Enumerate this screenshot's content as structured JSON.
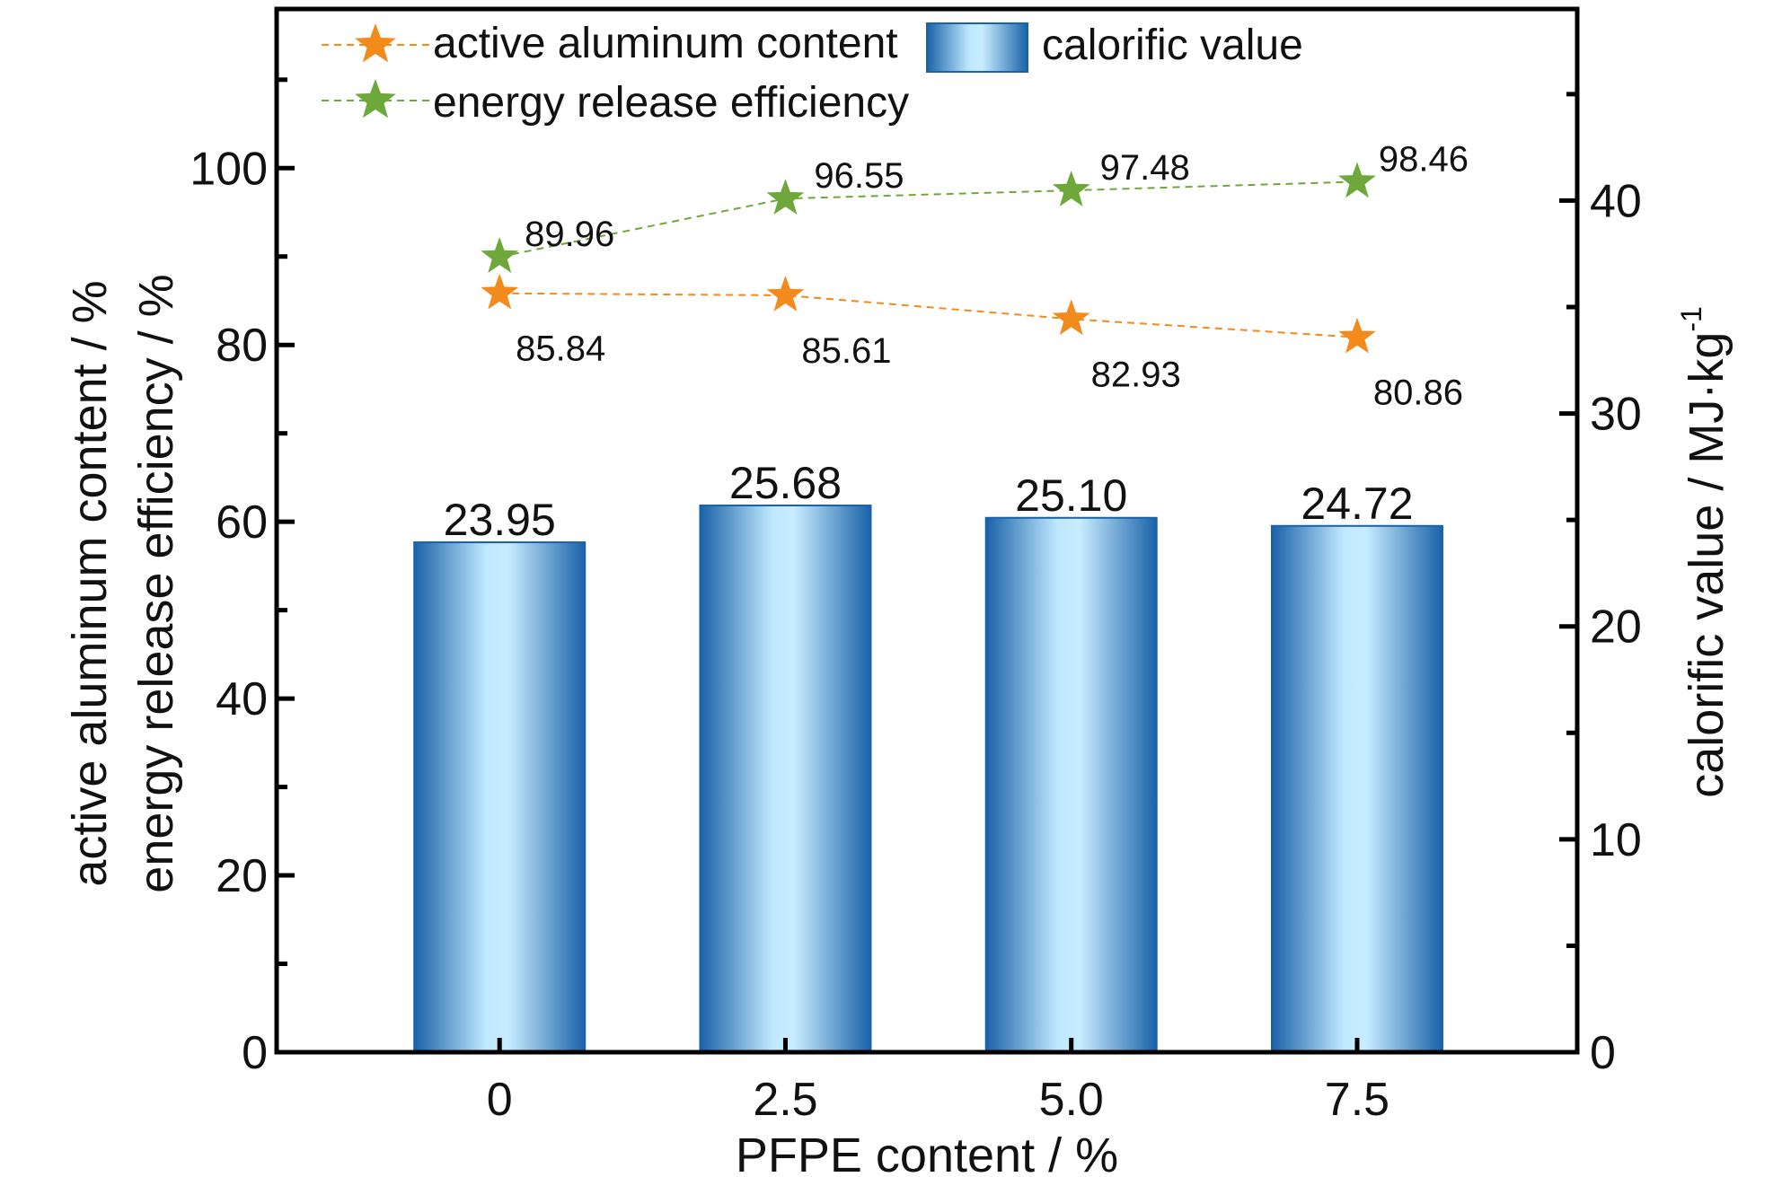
{
  "chart_data": {
    "type": "bar",
    "xlabel": "PFPE content / %",
    "categories": [
      "0",
      "2.5",
      "5.0",
      "7.5"
    ],
    "left_axis": {
      "label_lines": [
        "active aluminum content / %",
        "energy release efficiency / %"
      ],
      "ylim": [
        0,
        118
      ],
      "ticks": [
        0,
        20,
        40,
        60,
        80,
        100
      ],
      "minor_step": 10
    },
    "right_axis": {
      "label": "calorific value / MJ·kg",
      "label_sup": "-1",
      "ylim": [
        0,
        49
      ],
      "ticks": [
        0,
        10,
        20,
        30,
        40
      ],
      "minor_step": 5
    },
    "series": [
      {
        "name": "calorific value",
        "type": "bar",
        "axis": "right",
        "values": [
          23.95,
          25.68,
          25.1,
          24.72
        ],
        "labels": [
          "23.95",
          "25.68",
          "25.10",
          "24.72"
        ],
        "color": "#1f6bb0",
        "highlight": "#c8ecff"
      },
      {
        "name": "active aluminum content",
        "type": "line",
        "axis": "left",
        "values": [
          85.84,
          85.61,
          82.93,
          80.86
        ],
        "labels": [
          "85.84",
          "85.61",
          "82.93",
          "80.86"
        ],
        "color": "#f38a1c"
      },
      {
        "name": "energy release efficiency",
        "type": "line",
        "axis": "left",
        "values": [
          89.96,
          96.55,
          97.48,
          98.46
        ],
        "labels": [
          "89.96",
          "96.55",
          "97.48",
          "98.46"
        ],
        "color": "#6fa83a"
      }
    ],
    "legend_position": "top-left",
    "grid": false
  }
}
